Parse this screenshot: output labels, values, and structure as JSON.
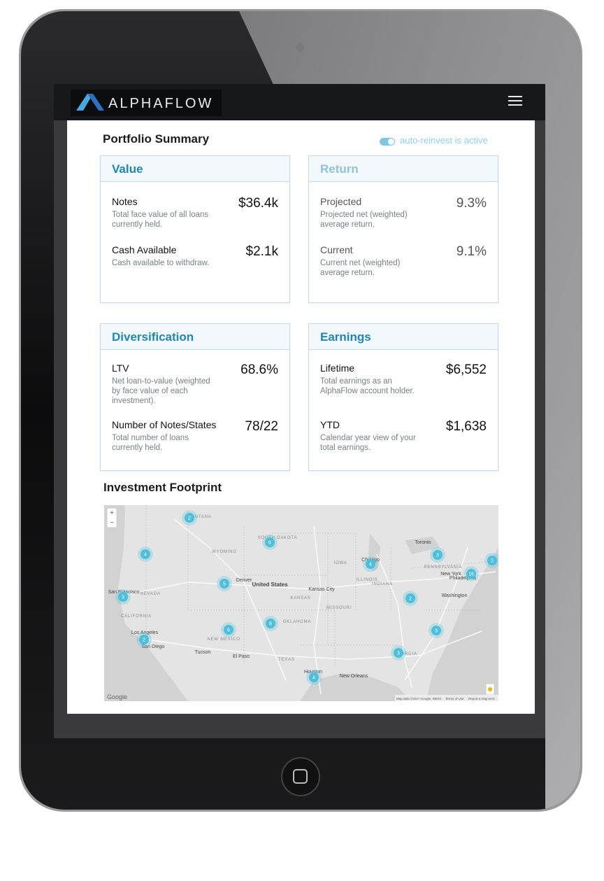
{
  "header": {
    "brand": "ALPHAFLOW"
  },
  "summary": {
    "title": "Portfolio Summary",
    "toggle_label": "auto-reinvest is active"
  },
  "cards": [
    {
      "title": "Value",
      "items": [
        {
          "label": "Notes",
          "description": "Total face value of all loans currently held.",
          "value": "$36.4k"
        },
        {
          "label": "Cash Available",
          "description": "Cash available to withdraw.",
          "value": "$2.1k"
        }
      ]
    },
    {
      "title": "Return",
      "items": [
        {
          "label": "Projected",
          "description": "Projected net (weighted) average return.",
          "value": "9.3%"
        },
        {
          "label": "Current",
          "description": "Current net (weighted) average return.",
          "value": "9.1%"
        }
      ]
    },
    {
      "title": "Diversification",
      "items": [
        {
          "label": "LTV",
          "description": "Net loan-to-value (weighted by face value of each investment).",
          "value": "68.6%"
        },
        {
          "label": "Number of Notes/States",
          "description": "Total number of loans currently held.",
          "value": "78/22"
        }
      ]
    },
    {
      "title": "Earnings",
      "items": [
        {
          "label": "Lifetime",
          "description": "Total earnings as an AlphaFlow account holder.",
          "value": "$6,552"
        },
        {
          "label": "YTD",
          "description": "Calendar year view of your total earnings.",
          "value": "$1,638"
        }
      ]
    }
  ],
  "footprint": {
    "title": "Investment Footprint",
    "map": {
      "zoom_in": "+",
      "zoom_out": "−",
      "labels": [
        "MONTANA",
        "SOUTH DAKOTA",
        "WYOMING",
        "NEVADA",
        "CALIFORNIA",
        "Denver",
        "United States",
        "Kansas City",
        "KANSAS",
        "MISSOURI",
        "OKLAHOMA",
        "NEW MEXICO",
        "El Paso",
        "TEXAS",
        "Houston",
        "New Orleans",
        "Chicago",
        "IOWA",
        "Toronto",
        "New York",
        "Philadelphia",
        "Washington",
        "San Francisco",
        "Los Angeles",
        "San Diego",
        "Tucson",
        "GEORGIA",
        "ILLINOIS",
        "INDIANA",
        "PENNSYLVANIA"
      ],
      "clusters": [
        "2",
        "4",
        "6",
        "5",
        "3",
        "6",
        "8",
        "2",
        "4",
        "3",
        "2",
        "16",
        "2",
        "3",
        "3",
        "4"
      ],
      "logo": "Google",
      "attribution": [
        "Map data ©2017 Google, INEGI",
        "Terms of Use",
        "Report a map error"
      ]
    }
  }
}
